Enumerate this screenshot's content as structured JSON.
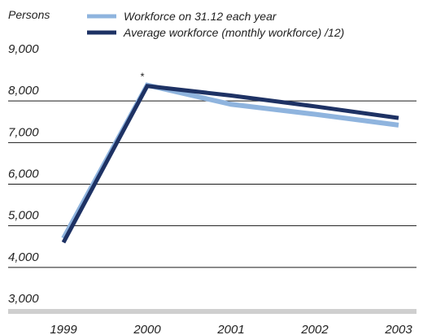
{
  "chart_data": {
    "type": "line",
    "title": "",
    "xlabel": "",
    "ylabel": "Persons",
    "categories": [
      "1999",
      "2000",
      "2001",
      "2002",
      "2003"
    ],
    "series": [
      {
        "name": "Workforce on 31.12 each year",
        "color": "#8fb4de",
        "values": [
          4700,
          8380,
          7920,
          7680,
          7420
        ]
      },
      {
        "name": "Average workforce (monthly workforce) /12)",
        "color": "#1e3264",
        "values": [
          4600,
          8360,
          8130,
          7870,
          7590
        ]
      }
    ],
    "ylim": [
      3000,
      9000
    ],
    "yticks": [
      "9,000",
      "8,000",
      "7,000",
      "6,000",
      "5,000",
      "4,000",
      "3,000"
    ],
    "ytick_values": [
      9000,
      8000,
      7000,
      6000,
      5000,
      4000,
      3000
    ],
    "grid": true,
    "legend_position": "top",
    "annotations": [
      {
        "text": "*",
        "x": "2000"
      }
    ],
    "colors": {
      "gridline": "#1a1a1a",
      "baseline_band": "#cfcfcf"
    }
  }
}
